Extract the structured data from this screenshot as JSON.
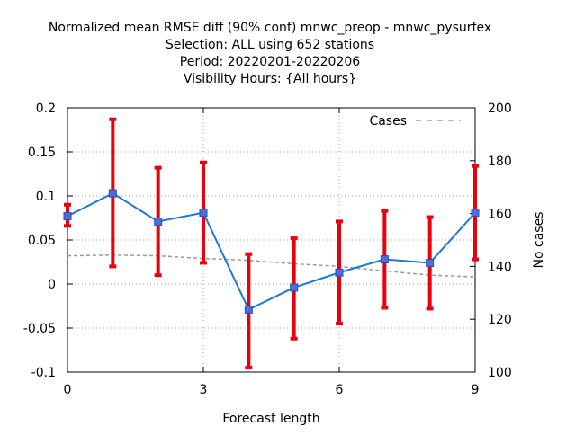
{
  "chart_data": {
    "type": "line",
    "title_lines": [
      "Normalized mean RMSE diff (90% conf) mnwc_preop - mnwc_pysurfex",
      "Selection: ALL using   652 stations",
      "Period: 20220201-20220206",
      "Visibility   Hours: {All hours}"
    ],
    "xlabel": "Forecast length",
    "ylabel": "",
    "y2label": "No cases",
    "xlim": [
      0,
      9
    ],
    "ylim": [
      -0.1,
      0.2
    ],
    "y2lim": [
      100,
      200
    ],
    "xticks": [
      0,
      3,
      6,
      9
    ],
    "xtick_labels": [
      "0",
      "3",
      "6",
      "9"
    ],
    "yticks": [
      -0.1,
      -0.05,
      0,
      0.05,
      0.1,
      0.15,
      0.2
    ],
    "ytick_labels": [
      "-0.1",
      "-0.05",
      "0",
      "0.05",
      "0.1",
      "0.15",
      "0.2"
    ],
    "y2ticks": [
      100,
      120,
      140,
      160,
      180,
      200
    ],
    "y2tick_labels": [
      "100",
      "120",
      "140",
      "160",
      "180",
      "200"
    ],
    "grid": true,
    "legend_position": "top-right",
    "x": [
      0,
      1,
      2,
      3,
      4,
      5,
      6,
      7,
      8,
      9
    ],
    "series": [
      {
        "axis": "left",
        "color": "#1e78d2",
        "marker_color": "#4a6fd8",
        "values": [
          0.077,
          0.103,
          0.071,
          0.081,
          -0.029,
          -0.004,
          0.013,
          0.028,
          0.024,
          0.081
        ],
        "error_low": [
          0.066,
          0.02,
          0.01,
          0.024,
          -0.095,
          -0.062,
          -0.045,
          -0.027,
          -0.028,
          0.028
        ],
        "error_high": [
          0.09,
          0.187,
          0.132,
          0.138,
          0.034,
          0.052,
          0.071,
          0.083,
          0.076,
          0.134
        ],
        "error_color": "#e8000b"
      },
      {
        "name": "Cases",
        "axis": "right",
        "color": "#999999",
        "style": "dashed",
        "values": [
          144,
          144.3,
          144,
          143,
          142.3,
          141,
          140,
          138.3,
          136.7,
          136
        ]
      }
    ]
  }
}
